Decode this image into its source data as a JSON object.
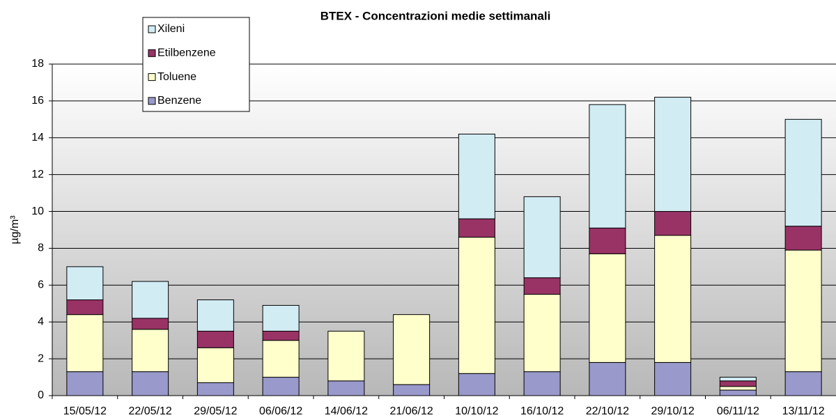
{
  "chart_data": {
    "type": "stacked_bar",
    "title": "BTEX - Concentrazioni medie settimanali",
    "y_label": "µg/m³",
    "categories": [
      "15/05/12",
      "22/05/12",
      "29/05/12",
      "06/06/12",
      "14/06/12",
      "21/06/12",
      "10/10/12",
      "16/10/12",
      "22/10/12",
      "29/10/12",
      "06/11/12",
      "13/11/12"
    ],
    "series": [
      {
        "name": "Benzene",
        "color": "#9999cc",
        "values": [
          1.3,
          1.3,
          0.7,
          1.0,
          0.8,
          0.6,
          1.2,
          1.3,
          1.8,
          1.8,
          0.3,
          1.3
        ]
      },
      {
        "name": "Toluene",
        "color": "#ffffcc",
        "values": [
          3.1,
          2.3,
          1.9,
          2.0,
          2.7,
          3.8,
          7.4,
          4.2,
          5.9,
          6.9,
          0.2,
          6.6
        ]
      },
      {
        "name": "Etilbenzene",
        "color": "#993366",
        "values": [
          0.8,
          0.6,
          0.9,
          0.5,
          0,
          0,
          1.0,
          0.9,
          1.4,
          1.3,
          0.3,
          1.3
        ]
      },
      {
        "name": "Xileni",
        "color": "#d2ecf4",
        "values": [
          1.8,
          2.0,
          1.7,
          1.4,
          0,
          0,
          4.6,
          4.4,
          6.7,
          6.2,
          0.2,
          5.8
        ]
      }
    ],
    "ylim": [
      0,
      18
    ],
    "yticks": [
      0,
      2,
      4,
      6,
      8,
      10,
      12,
      14,
      16,
      18
    ],
    "grid": true
  }
}
